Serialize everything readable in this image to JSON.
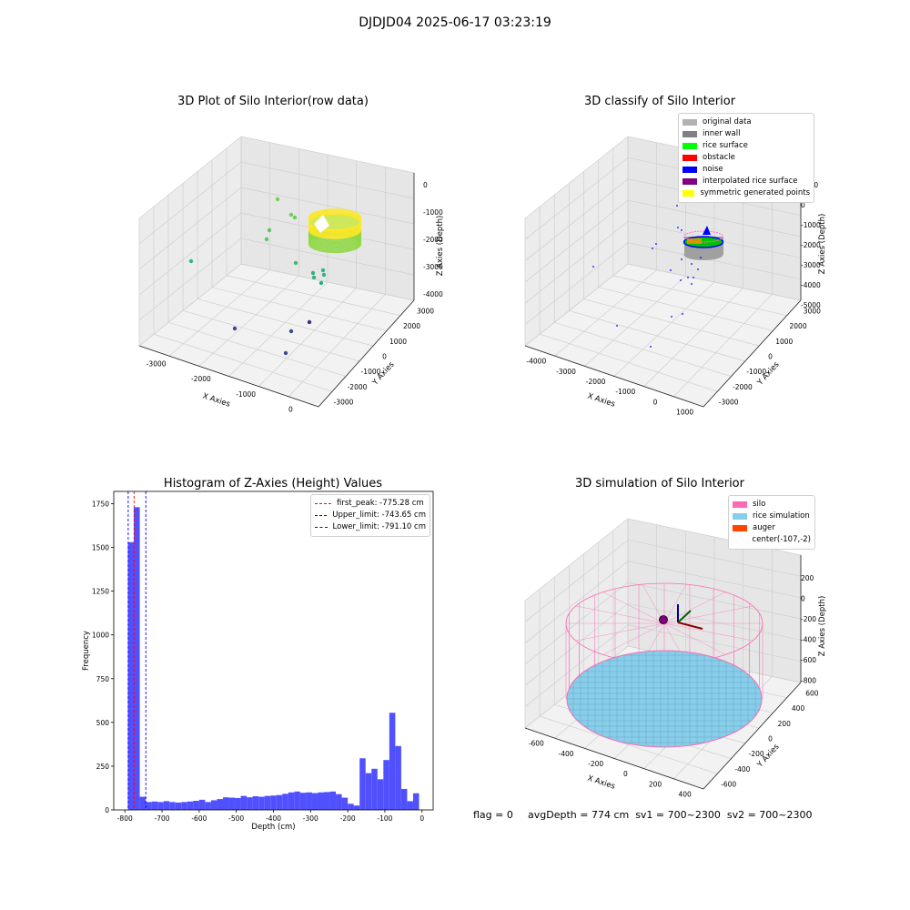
{
  "figure": {
    "suptitle": "DJDJD04 2025-06-17 03:23:19",
    "footer": {
      "flag": "flag = 0",
      "stats": "avgDepth = 774 cm  sv1 = 700~2300  sv2 = 700~2300"
    }
  },
  "chart_data": [
    {
      "type": "scatter",
      "title": "3D Plot of Silo Interior(row data)",
      "xlabel": "X Axies",
      "ylabel": "Y Axies",
      "zlabel": "Z Axies (Depth)",
      "x_ticks": [
        "-3000",
        "-2000",
        "-1000",
        "0"
      ],
      "y_ticks": [
        "-3000",
        "-2000",
        "-1000",
        "0",
        "1000",
        "2000",
        "3000"
      ],
      "z_ticks": [
        "0",
        "-1000",
        "-2000",
        "-3000",
        "-4000"
      ],
      "outlier_points_depth": [
        -820,
        -1000,
        -1400,
        -1500,
        -2300,
        -2900,
        -3100,
        -3200,
        -3400,
        -3500,
        -3600,
        -3700,
        -3800,
        -3800
      ],
      "cluster": {
        "description_colors": [
          "#9ad93c",
          "#fde725"
        ],
        "depth_range": [
          -700,
          -1200
        ]
      },
      "colormap": "viridis"
    },
    {
      "type": "scatter",
      "title": "3D classify of Silo Interior",
      "xlabel": "X Axies",
      "ylabel": "Y Axies",
      "zlabel": "Z Axies (Depth)",
      "x_ticks": [
        "-4000",
        "-3000",
        "-2000",
        "-1000",
        "0",
        "1000"
      ],
      "y_ticks": [
        "-3000",
        "-2000",
        "-1000",
        "0",
        "1000",
        "2000",
        "3000"
      ],
      "z_ticks": [
        "1000",
        "0",
        "-1000",
        "-2000",
        "-3000",
        "-4000",
        "-5000"
      ],
      "legend": [
        {
          "label": "original data",
          "color": "#b2b2b2"
        },
        {
          "label": "inner wall",
          "color": "#808080"
        },
        {
          "label": "rice surface",
          "color": "#00ff00"
        },
        {
          "label": "obstacle",
          "color": "#ff0000"
        },
        {
          "label": "noise",
          "color": "#0000ff"
        },
        {
          "label": "interpolated rice surface",
          "color": "#800080"
        },
        {
          "label": "symmetric generated points",
          "color": "#ffff00"
        }
      ]
    },
    {
      "type": "bar",
      "title": "Histogram of Z-Axies (Height) Values",
      "xlabel": "Depth (cm)",
      "ylabel": "Frequency",
      "xlim": [
        -830,
        30
      ],
      "ylim": [
        0,
        1820
      ],
      "x_ticks": [
        -800,
        -700,
        -600,
        -500,
        -400,
        -300,
        -200,
        -100,
        0
      ],
      "y_ticks": [
        0,
        250,
        500,
        750,
        1000,
        1250,
        1500,
        1750
      ],
      "bin_width": 16,
      "bin_start": -792,
      "values": [
        1530,
        1730,
        75,
        45,
        48,
        45,
        50,
        45,
        42,
        45,
        48,
        52,
        58,
        45,
        55,
        62,
        72,
        70,
        68,
        80,
        72,
        78,
        75,
        80,
        82,
        85,
        92,
        100,
        105,
        98,
        100,
        96,
        100,
        102,
        105,
        90,
        70,
        35,
        25,
        295,
        210,
        235,
        175,
        285,
        555,
        365,
        120,
        50,
        95
      ],
      "bar_color": "#5050ff",
      "vlines": [
        {
          "label": "first_peak: -775.28 cm",
          "x": -775.28,
          "color": "#ff0000"
        },
        {
          "label": "Upper_limit: -743.65 cm",
          "x": -743.65,
          "color": "#0000ff"
        },
        {
          "label": "Lower_limit: -791.10 cm",
          "x": -791.1,
          "color": "#0000ff"
        }
      ],
      "legend_position": "upper right"
    },
    {
      "type": "scatter",
      "title": "3D simulation of Silo Interior",
      "xlabel": "X Axies",
      "ylabel": "Y Axies",
      "zlabel": "Z Axies (Depth)",
      "x_ticks": [
        "-600",
        "-400",
        "-200",
        "0",
        "200",
        "400"
      ],
      "y_ticks": [
        "-600",
        "-400",
        "-200",
        "0",
        "200",
        "400",
        "600"
      ],
      "z_ticks": [
        "200",
        "0",
        "-200",
        "-400",
        "-600",
        "-800"
      ],
      "legend": [
        {
          "label": "silo",
          "color": "#ff69b4"
        },
        {
          "label": "rice simulation",
          "color": "#87ceeb"
        },
        {
          "label": "auger",
          "color": "#ff4500"
        },
        {
          "label": "center(-107,-2)",
          "color": ""
        }
      ]
    }
  ]
}
